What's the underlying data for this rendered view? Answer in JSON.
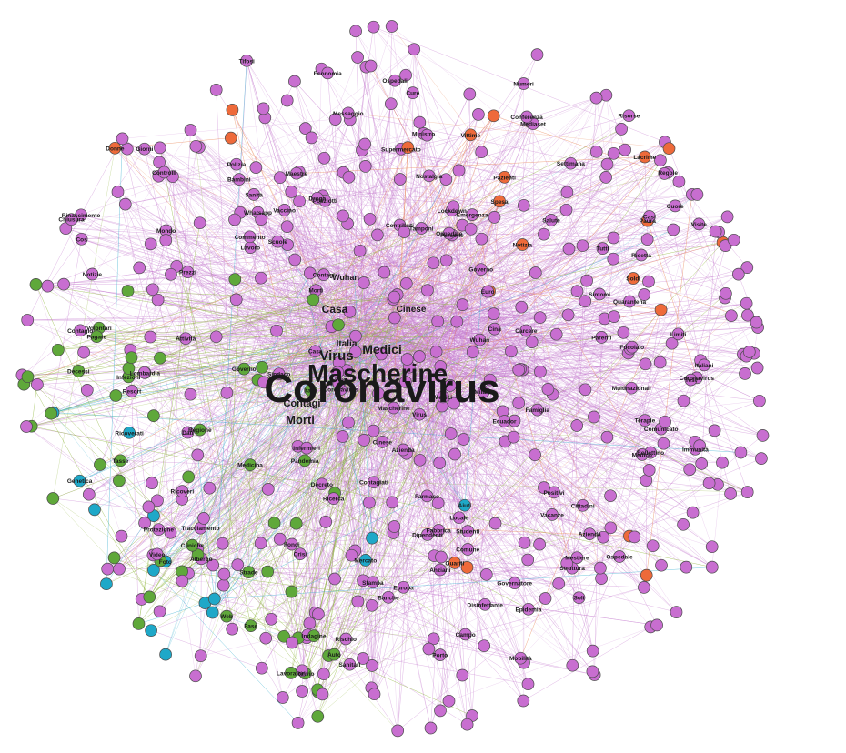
{
  "palette": {
    "pink": "#c86ed0",
    "green": "#5fa83a",
    "orange": "#ee6a3a",
    "blue": "#1ea8c8",
    "edge_pink": "#c77bd0",
    "edge_green": "#8fb43a",
    "edge_blue": "#3fb2d1",
    "edge_orange": "#e98a5a"
  },
  "hub_labels": [
    "Coronavirus",
    "Mascherine",
    "Virus",
    "Medici",
    "Casa",
    "Morti",
    "Cinese",
    "Italia",
    "Wuhan",
    "Contagi"
  ],
  "labels": [
    {
      "text": "Coronavirus",
      "group": "pink"
    },
    {
      "text": "Mascherine",
      "group": "pink"
    },
    {
      "text": "Casa",
      "group": "pink"
    },
    {
      "text": "Virus",
      "group": "pink"
    },
    {
      "text": "Medici",
      "group": "pink"
    },
    {
      "text": "Italia",
      "group": "pink"
    },
    {
      "text": "Morti",
      "group": "green"
    },
    {
      "text": "Contagi",
      "group": "green"
    },
    {
      "text": "Cinese",
      "group": "pink"
    },
    {
      "text": "Wuhan",
      "group": "pink"
    },
    {
      "text": "Azienda",
      "group": "pink"
    },
    {
      "text": "Sindaco",
      "group": "pink"
    },
    {
      "text": "Milano",
      "group": "pink"
    },
    {
      "text": "Cina",
      "group": "orange"
    },
    {
      "text": "Euro",
      "group": "pink"
    },
    {
      "text": "Contributi",
      "group": "pink"
    },
    {
      "text": "Tamponi",
      "group": "green"
    },
    {
      "text": "Governo",
      "group": "pink"
    },
    {
      "text": "Infermieri",
      "group": "pink"
    },
    {
      "text": "Ospedale",
      "group": "pink"
    },
    {
      "text": "Persone",
      "group": "pink"
    },
    {
      "text": "Contagiati",
      "group": "green"
    },
    {
      "text": "Pandemia",
      "group": "pink"
    },
    {
      "text": "Governo",
      "group": "pink"
    },
    {
      "text": "Ecuador",
      "group": "pink"
    },
    {
      "text": "Carcere",
      "group": "pink"
    },
    {
      "text": "Scuole",
      "group": "pink"
    },
    {
      "text": "Decreto",
      "group": "pink"
    },
    {
      "text": "Lockdown",
      "group": "pink"
    },
    {
      "text": "Poliziotti",
      "group": "pink"
    },
    {
      "text": "Farmaco",
      "group": "pink"
    },
    {
      "text": "Emergenza",
      "group": "pink"
    },
    {
      "text": "Ricerca",
      "group": "pink"
    },
    {
      "text": "Droga",
      "group": "pink"
    },
    {
      "text": "Lavoro",
      "group": "pink"
    },
    {
      "text": "Vaccino",
      "group": "pink"
    },
    {
      "text": "Famiglia",
      "group": "pink"
    },
    {
      "text": "Commento",
      "group": "orange"
    },
    {
      "text": "Notizia",
      "group": "pink"
    },
    {
      "text": "Nostalgia",
      "group": "pink"
    },
    {
      "text": "Medicina",
      "group": "pink"
    },
    {
      "text": "Aiuti",
      "group": "pink"
    },
    {
      "text": "Whatsapp",
      "group": "pink"
    },
    {
      "text": "Spesa",
      "group": "pink"
    },
    {
      "text": "Locale",
      "group": "pink"
    },
    {
      "text": "Maestre",
      "group": "pink"
    },
    {
      "text": "Fabbrica",
      "group": "pink"
    },
    {
      "text": "Dipendenti",
      "group": "green"
    },
    {
      "text": "Attività",
      "group": "green"
    },
    {
      "text": "Supermercato",
      "group": "pink"
    },
    {
      "text": "Sanità",
      "group": "pink"
    },
    {
      "text": "Regione",
      "group": "pink"
    },
    {
      "text": "Studenti",
      "group": "pink"
    },
    {
      "text": "Prezzi",
      "group": "pink"
    },
    {
      "text": "Pazienti",
      "group": "pink"
    },
    {
      "text": "Salute",
      "group": "pink"
    },
    {
      "text": "Dati",
      "group": "pink"
    },
    {
      "text": "Mercato",
      "group": "pink"
    },
    {
      "text": "Ministro",
      "group": "pink"
    },
    {
      "text": "Fondi",
      "group": "pink"
    },
    {
      "text": "Bambini",
      "group": "pink"
    },
    {
      "text": "Parenti",
      "group": "pink"
    },
    {
      "text": "Comune",
      "group": "pink"
    },
    {
      "text": "Sintomi",
      "group": "green"
    },
    {
      "text": "Crisi",
      "group": "pink"
    },
    {
      "text": "Positivi",
      "group": "green"
    },
    {
      "text": "Vittime",
      "group": "green"
    },
    {
      "text": "Guariti",
      "group": "green"
    },
    {
      "text": "Anziani",
      "group": "pink"
    },
    {
      "text": "Polizia",
      "group": "pink"
    },
    {
      "text": "Messaggio",
      "group": "pink"
    },
    {
      "text": "Stampa",
      "group": "pink"
    },
    {
      "text": "Lombardia",
      "group": "pink"
    },
    {
      "text": "Vacanze",
      "group": "pink"
    },
    {
      "text": "Tutti",
      "group": "pink"
    },
    {
      "text": "Europa",
      "group": "pink"
    },
    {
      "text": "Mondo",
      "group": "pink"
    },
    {
      "text": "Ricoveri",
      "group": "green"
    },
    {
      "text": "Focolaio",
      "group": "blue"
    },
    {
      "text": "Quarantena",
      "group": "pink"
    },
    {
      "text": "Banche",
      "group": "pink"
    },
    {
      "text": "Multinazionali",
      "group": "pink"
    },
    {
      "text": "Resort",
      "group": "pink"
    },
    {
      "text": "Cure",
      "group": "pink"
    },
    {
      "text": "Infezioni",
      "group": "pink"
    },
    {
      "text": "Cittadini",
      "group": "pink"
    },
    {
      "text": "Tracciamento",
      "group": "pink"
    },
    {
      "text": "Soldi",
      "group": "pink"
    },
    {
      "text": "Settimana",
      "group": "pink"
    },
    {
      "text": "Strade",
      "group": "pink"
    },
    {
      "text": "Ospedali",
      "group": "pink"
    },
    {
      "text": "Ricoverati",
      "group": "green"
    },
    {
      "text": "Mediaset",
      "group": "pink"
    },
    {
      "text": "Conferenza",
      "group": "pink"
    },
    {
      "text": "Governatore",
      "group": "pink"
    },
    {
      "text": "Terapie",
      "group": "green"
    },
    {
      "text": "Ricetta",
      "group": "pink"
    },
    {
      "text": "Cliniche",
      "group": "pink"
    },
    {
      "text": "Economia",
      "group": "pink"
    },
    {
      "text": "Controlli",
      "group": "pink"
    },
    {
      "text": "Disinfettante",
      "group": "pink"
    },
    {
      "text": "Albergo",
      "group": "pink"
    },
    {
      "text": "Azienda",
      "group": "pink"
    },
    {
      "text": "Medico",
      "group": "pink"
    },
    {
      "text": "Volontari",
      "group": "pink"
    },
    {
      "text": "Pagare",
      "group": "pink"
    },
    {
      "text": "Tasse",
      "group": "pink"
    },
    {
      "text": "Mestiere",
      "group": "pink"
    },
    {
      "text": "Bollettino",
      "group": "green"
    },
    {
      "text": "Protezione",
      "group": "pink"
    },
    {
      "text": "Comunicato",
      "group": "pink"
    },
    {
      "text": "Struttura",
      "group": "pink"
    },
    {
      "text": "Paura",
      "group": "orange"
    },
    {
      "text": "Rischio",
      "group": "pink"
    },
    {
      "text": "Limiti",
      "group": "pink"
    },
    {
      "text": "Casi",
      "group": "green"
    },
    {
      "text": "Numeri",
      "group": "green"
    },
    {
      "text": "Indagine",
      "group": "pink"
    },
    {
      "text": "Notizie",
      "group": "pink"
    },
    {
      "text": "Campo",
      "group": "pink"
    },
    {
      "text": "Epidemia",
      "group": "pink"
    },
    {
      "text": "Contagio",
      "group": "pink"
    },
    {
      "text": "Decessi",
      "group": "green"
    },
    {
      "text": "Foto",
      "group": "pink"
    },
    {
      "text": "Video",
      "group": "pink"
    },
    {
      "text": "Giorni",
      "group": "pink"
    },
    {
      "text": "Fase",
      "group": "pink"
    },
    {
      "text": "Test",
      "group": "pink"
    },
    {
      "text": "Web",
      "group": "pink"
    },
    {
      "text": "Auto",
      "group": "pink"
    },
    {
      "text": "Porto",
      "group": "pink"
    },
    {
      "text": "Tifosi",
      "group": "pink"
    },
    {
      "text": "Coronavirus",
      "group": "pink"
    },
    {
      "text": "Ospedale",
      "group": "pink"
    },
    {
      "text": "Cos",
      "group": "pink"
    },
    {
      "text": "Soli",
      "group": "pink"
    },
    {
      "text": "Sanitari",
      "group": "pink"
    },
    {
      "text": "Italiani",
      "group": "pink"
    },
    {
      "text": "Lacrime",
      "group": "pink"
    },
    {
      "text": "Cuore",
      "group": "orange"
    },
    {
      "text": "Rinascimento",
      "group": "pink"
    },
    {
      "text": "Immunità",
      "group": "pink"
    },
    {
      "text": "Genetica",
      "group": "pink"
    },
    {
      "text": "Donne",
      "group": "pink"
    },
    {
      "text": "Regole",
      "group": "pink"
    },
    {
      "text": "Chiusura",
      "group": "pink"
    },
    {
      "text": "Rinvio",
      "group": "pink"
    },
    {
      "text": "Risorse",
      "group": "pink"
    },
    {
      "text": "Visite",
      "group": "pink"
    },
    {
      "text": "Lavoratori",
      "group": "pink"
    },
    {
      "text": "Mobilità",
      "group": "pink"
    }
  ]
}
